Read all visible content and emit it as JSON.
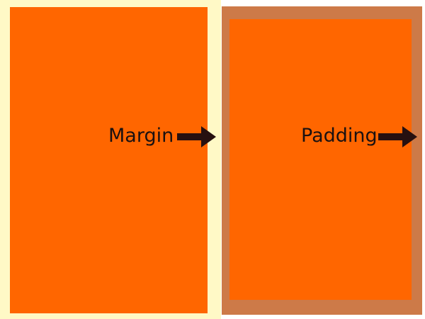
{
  "colors": {
    "orange": "#ff6600",
    "margin_area": "#fff9c6",
    "padding_area": "#cd7a48",
    "text": "#1a1111",
    "arrow": "#261010"
  },
  "labels": {
    "margin": "Margin",
    "padding": "Padding"
  },
  "icons": {
    "margin_arrow": "right-arrow-icon",
    "padding_arrow": "right-arrow-icon"
  }
}
